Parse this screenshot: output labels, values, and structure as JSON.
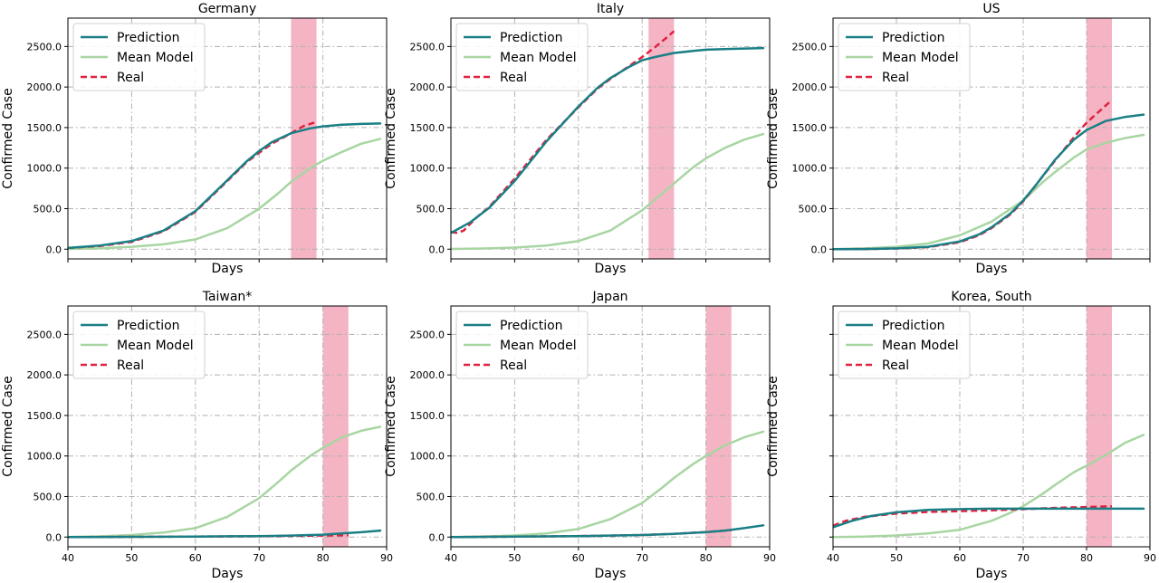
{
  "colors": {
    "prediction": "#1a7f85",
    "mean_model": "#a8d5a2",
    "real": "#e0223f",
    "window": "#f08ca3",
    "grid": "#b0b0b0"
  },
  "legend_labels": [
    "Prediction",
    "Mean Model",
    "Real"
  ],
  "chart_data": [
    {
      "type": "line",
      "title": "Germany",
      "xlabel": "Days",
      "ylabel": "Confirmed Case",
      "xlim": [
        40,
        90
      ],
      "ylim": [
        -120,
        2850
      ],
      "xticks": [
        40,
        50,
        60,
        70,
        80,
        90
      ],
      "show_xtick_labels": false,
      "yticks": [
        0,
        500,
        1000,
        1500,
        2000,
        2500
      ],
      "ytick_labels": [
        "0.0",
        "500.0",
        "1000.0",
        "1500.0",
        "2000.0",
        "2500.0"
      ],
      "legend": "top-left",
      "grid": true,
      "window": [
        75,
        79
      ],
      "series": [
        {
          "name": "Prediction",
          "style": "solid",
          "x": [
            40,
            45,
            50,
            55,
            60,
            65,
            68,
            70,
            72,
            75,
            78,
            80,
            83,
            86,
            89
          ],
          "values": [
            15,
            45,
            100,
            230,
            470,
            850,
            1080,
            1210,
            1320,
            1430,
            1490,
            1515,
            1535,
            1545,
            1550
          ]
        },
        {
          "name": "Mean Model",
          "style": "solid",
          "x": [
            40,
            45,
            50,
            55,
            60,
            65,
            70,
            73,
            75,
            78,
            80,
            83,
            86,
            89
          ],
          "values": [
            3,
            10,
            30,
            60,
            120,
            260,
            500,
            690,
            830,
            1000,
            1090,
            1200,
            1300,
            1360
          ]
        },
        {
          "name": "Real",
          "style": "dashed",
          "x": [
            40,
            45,
            50,
            55,
            60,
            65,
            68,
            70,
            72,
            75,
            77,
            79
          ],
          "values": [
            15,
            40,
            90,
            220,
            460,
            840,
            1070,
            1190,
            1300,
            1430,
            1520,
            1570
          ]
        }
      ]
    },
    {
      "type": "line",
      "title": "Italy",
      "xlabel": "Days",
      "ylabel": "Confirmed Case",
      "xlim": [
        40,
        90
      ],
      "ylim": [
        -120,
        2850
      ],
      "xticks": [
        40,
        50,
        60,
        70,
        80,
        90
      ],
      "show_xtick_labels": false,
      "yticks": [
        0,
        500,
        1000,
        1500,
        2000,
        2500
      ],
      "ytick_labels": [
        "0.0",
        "500.0",
        "1000.0",
        "1500.0",
        "2000.0",
        "2500.0"
      ],
      "legend": "top-left",
      "grid": true,
      "window": [
        71,
        75
      ],
      "series": [
        {
          "name": "Prediction",
          "style": "solid",
          "x": [
            40,
            43,
            46,
            50,
            55,
            60,
            63,
            65,
            68,
            70,
            72,
            75,
            78,
            80,
            84,
            89
          ],
          "values": [
            200,
            330,
            510,
            840,
            1330,
            1760,
            1990,
            2110,
            2250,
            2330,
            2370,
            2420,
            2445,
            2460,
            2470,
            2480
          ]
        },
        {
          "name": "Mean Model",
          "style": "solid",
          "x": [
            40,
            45,
            50,
            55,
            60,
            65,
            70,
            72,
            75,
            78,
            80,
            83,
            86,
            89
          ],
          "values": [
            3,
            8,
            20,
            45,
            100,
            230,
            480,
            610,
            810,
            1010,
            1120,
            1250,
            1350,
            1420
          ]
        },
        {
          "name": "Real",
          "style": "dashed",
          "x": [
            40,
            41,
            42,
            44,
            46,
            50,
            55,
            60,
            63,
            65,
            68,
            70,
            72,
            74,
            75
          ],
          "values": [
            210,
            200,
            230,
            390,
            520,
            870,
            1350,
            1750,
            1980,
            2100,
            2260,
            2370,
            2490,
            2620,
            2690
          ]
        }
      ]
    },
    {
      "type": "line",
      "title": "US",
      "xlabel": "Days",
      "ylabel": "Confirmed Case",
      "xlim": [
        40,
        90
      ],
      "ylim": [
        -120,
        2850
      ],
      "xticks": [
        40,
        50,
        60,
        70,
        80,
        90
      ],
      "show_xtick_labels": false,
      "yticks": [
        0,
        500,
        1000,
        1500,
        2000,
        2500
      ],
      "ytick_labels": [
        "0.0",
        "500.0",
        "1000.0",
        "1500.0",
        "2000.0",
        "2500.0"
      ],
      "legend": "top-left",
      "grid": true,
      "window": [
        80,
        84
      ],
      "series": [
        {
          "name": "Prediction",
          "style": "solid",
          "x": [
            40,
            45,
            50,
            55,
            60,
            63,
            65,
            68,
            70,
            72,
            75,
            78,
            80,
            83,
            86,
            89
          ],
          "values": [
            0,
            2,
            10,
            30,
            95,
            180,
            270,
            440,
            600,
            790,
            1100,
            1350,
            1470,
            1580,
            1630,
            1660
          ]
        },
        {
          "name": "Mean Model",
          "style": "solid",
          "x": [
            40,
            45,
            50,
            55,
            60,
            65,
            70,
            73,
            75,
            78,
            80,
            83,
            86,
            89
          ],
          "values": [
            0,
            10,
            30,
            70,
            170,
            340,
            600,
            820,
            950,
            1130,
            1230,
            1310,
            1370,
            1410
          ]
        },
        {
          "name": "Real",
          "style": "dashed",
          "x": [
            40,
            45,
            50,
            55,
            60,
            63,
            65,
            68,
            70,
            72,
            75,
            78,
            80,
            82,
            84
          ],
          "values": [
            0,
            2,
            8,
            25,
            85,
            170,
            260,
            430,
            590,
            790,
            1090,
            1380,
            1560,
            1700,
            1840
          ]
        }
      ]
    },
    {
      "type": "line",
      "title": "Taiwan*",
      "xlabel": "Days",
      "ylabel": "Confirmed Case",
      "xlim": [
        40,
        90
      ],
      "ylim": [
        -120,
        2850
      ],
      "xticks": [
        40,
        50,
        60,
        70,
        80,
        90
      ],
      "xtick_labels": [
        "40",
        "50",
        "60",
        "70",
        "80",
        "90"
      ],
      "show_xtick_labels": true,
      "yticks": [
        0,
        500,
        1000,
        1500,
        2000,
        2500
      ],
      "ytick_labels": [
        "0.0",
        "500.0",
        "1000.0",
        "1500.0",
        "2000.0",
        "2500.0"
      ],
      "legend": "top-left",
      "grid": true,
      "window": [
        80,
        84
      ],
      "series": [
        {
          "name": "Prediction",
          "style": "solid",
          "x": [
            40,
            50,
            60,
            70,
            75,
            80,
            83,
            86,
            89
          ],
          "values": [
            0,
            3,
            6,
            12,
            18,
            30,
            45,
            60,
            80
          ]
        },
        {
          "name": "Mean Model",
          "style": "solid",
          "x": [
            40,
            45,
            50,
            55,
            60,
            65,
            70,
            73,
            75,
            78,
            80,
            83,
            86,
            89
          ],
          "values": [
            2,
            8,
            25,
            55,
            110,
            250,
            480,
            680,
            820,
            1000,
            1100,
            1230,
            1310,
            1360
          ]
        },
        {
          "name": "Real",
          "style": "dashed",
          "x": [
            40,
            50,
            60,
            70,
            75,
            80,
            84
          ],
          "values": [
            0,
            3,
            6,
            10,
            14,
            18,
            22
          ]
        }
      ]
    },
    {
      "type": "line",
      "title": "Japan",
      "xlabel": "Days",
      "ylabel": "Confirmed Case",
      "xlim": [
        40,
        90
      ],
      "ylim": [
        -120,
        2850
      ],
      "xticks": [
        40,
        50,
        60,
        70,
        80,
        90
      ],
      "xtick_labels": [
        "40",
        "50",
        "60",
        "70",
        "80",
        "90"
      ],
      "show_xtick_labels": true,
      "yticks": [
        0,
        500,
        1000,
        1500,
        2000,
        2500
      ],
      "ytick_labels": [
        "0.0",
        "500.0",
        "1000.0",
        "1500.0",
        "2000.0",
        "2500.0"
      ],
      "legend": "top-left",
      "grid": true,
      "window": [
        80,
        84
      ],
      "series": [
        {
          "name": "Prediction",
          "style": "solid",
          "x": [
            40,
            50,
            60,
            70,
            75,
            80,
            83,
            86,
            89
          ],
          "values": [
            0,
            5,
            12,
            25,
            40,
            60,
            80,
            110,
            145
          ]
        },
        {
          "name": "Mean Model",
          "style": "solid",
          "x": [
            40,
            45,
            50,
            55,
            60,
            65,
            70,
            73,
            75,
            78,
            80,
            83,
            86,
            89
          ],
          "values": [
            2,
            7,
            20,
            45,
            100,
            220,
            420,
            600,
            730,
            900,
            1000,
            1130,
            1230,
            1300
          ]
        },
        {
          "name": "Real",
          "style": "dashed",
          "x": [
            40,
            50,
            60,
            70,
            75,
            80,
            84
          ],
          "values": [
            0,
            5,
            12,
            25,
            40,
            62,
            85
          ]
        }
      ]
    },
    {
      "type": "line",
      "title": "Korea, South",
      "xlabel": "Days",
      "ylabel": "Confirmed Case",
      "xlim": [
        40,
        90
      ],
      "ylim": [
        -120,
        2850
      ],
      "xticks": [
        40,
        50,
        60,
        70,
        80,
        90
      ],
      "xtick_labels": [
        "40",
        "50",
        "60",
        "70",
        "80",
        "90"
      ],
      "show_xtick_labels": true,
      "yticks": [
        0,
        500,
        1000,
        1500,
        2000,
        2500
      ],
      "ytick_labels": [],
      "legend": "top-left",
      "grid": true,
      "window": [
        80,
        84
      ],
      "series": [
        {
          "name": "Prediction",
          "style": "solid",
          "x": [
            40,
            43,
            46,
            50,
            55,
            60,
            65,
            70,
            75,
            80,
            85,
            89
          ],
          "values": [
            120,
            200,
            260,
            305,
            335,
            345,
            350,
            350,
            350,
            350,
            350,
            350
          ]
        },
        {
          "name": "Mean Model",
          "style": "solid",
          "x": [
            40,
            45,
            50,
            55,
            60,
            65,
            68,
            70,
            73,
            75,
            78,
            80,
            83,
            86,
            89
          ],
          "values": [
            1,
            5,
            20,
            45,
            90,
            200,
            300,
            380,
            530,
            640,
            800,
            880,
            1010,
            1160,
            1260
          ]
        },
        {
          "name": "Real",
          "style": "dashed",
          "x": [
            40,
            42,
            45,
            50,
            55,
            60,
            65,
            70,
            75,
            80,
            84
          ],
          "values": [
            140,
            200,
            250,
            290,
            310,
            320,
            330,
            345,
            360,
            370,
            380
          ]
        }
      ]
    }
  ]
}
